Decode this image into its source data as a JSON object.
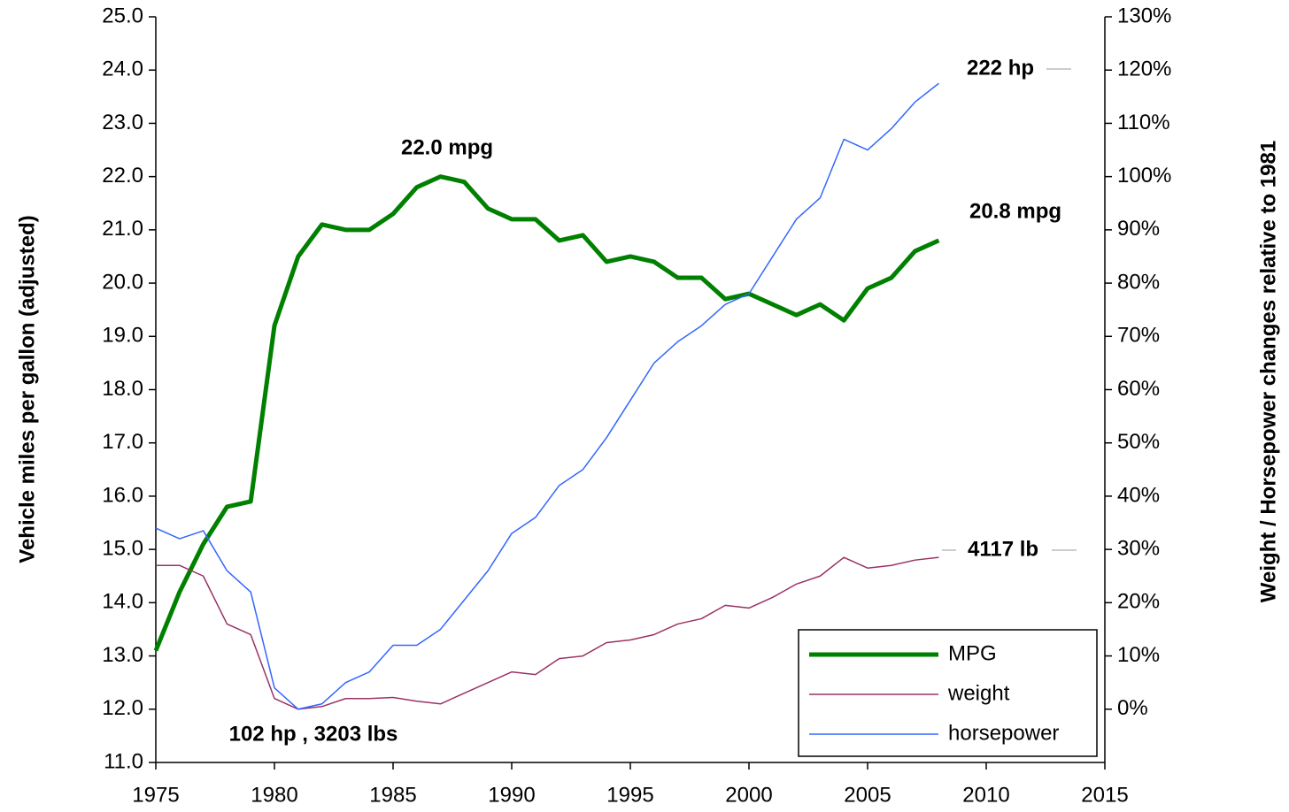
{
  "chart_data": {
    "type": "line",
    "y_label": "Vehicle miles per gallon (adjusted)",
    "y2_label": "Weight / Horsepower changes relative to 1981",
    "x": [
      1975,
      1976,
      1977,
      1978,
      1979,
      1980,
      1981,
      1982,
      1983,
      1984,
      1985,
      1986,
      1987,
      1988,
      1989,
      1990,
      1991,
      1992,
      1993,
      1994,
      1995,
      1996,
      1997,
      1998,
      1999,
      2000,
      2001,
      2002,
      2003,
      2004,
      2005,
      2006,
      2007,
      2008
    ],
    "series": [
      {
        "name": "MPG",
        "color": "#008000",
        "axis": "y",
        "values": [
          13.1,
          14.2,
          15.1,
          15.8,
          15.9,
          19.2,
          20.5,
          21.1,
          21.0,
          21.0,
          21.3,
          21.8,
          22.0,
          21.9,
          21.4,
          21.2,
          21.2,
          20.8,
          20.9,
          20.4,
          20.5,
          20.4,
          20.1,
          20.1,
          19.7,
          19.8,
          19.6,
          19.4,
          19.6,
          19.3,
          19.9,
          20.1,
          20.6,
          20.8
        ]
      },
      {
        "name": "weight",
        "color": "#993366",
        "axis": "y2",
        "values": [
          27,
          27,
          25,
          16,
          14,
          2,
          0,
          0.5,
          2,
          2,
          2.2,
          1.5,
          1,
          3,
          5,
          7,
          6.5,
          9.5,
          10,
          12.5,
          13,
          14,
          16,
          17,
          19.5,
          19,
          21,
          23.5,
          25,
          28.5,
          26.5,
          27,
          28,
          28.5
        ]
      },
      {
        "name": "horsepower",
        "color": "#3366ff",
        "axis": "y2",
        "values": [
          34,
          32,
          33.5,
          26,
          22,
          4,
          0,
          1,
          5,
          7,
          12,
          12,
          15,
          20.5,
          26,
          33,
          36,
          42,
          45,
          51,
          58,
          65,
          69,
          72,
          76,
          78,
          85,
          92,
          96,
          107,
          105,
          109,
          114,
          117.5
        ]
      }
    ],
    "annotations": [
      "222 hp",
      "20.8 mpg",
      "22.0 mpg",
      "4117 lb",
      "102 hp , 3203 lbs"
    ],
    "xlim": [
      1975,
      2015
    ],
    "xticks": [
      1975,
      1980,
      1985,
      1990,
      1995,
      2000,
      2005,
      2010,
      2015
    ],
    "ylim": [
      11,
      25
    ],
    "yticks": [
      {
        "value": 11,
        "label": "11.0"
      },
      {
        "value": 12,
        "label": "12.0"
      },
      {
        "value": 13,
        "label": "13.0"
      },
      {
        "value": 14,
        "label": "14.0"
      },
      {
        "value": 15,
        "label": "15.0"
      },
      {
        "value": 16,
        "label": "16.0"
      },
      {
        "value": 17,
        "label": "17.0"
      },
      {
        "value": 18,
        "label": "18.0"
      },
      {
        "value": 19,
        "label": "19.0"
      },
      {
        "value": 20,
        "label": "20.0"
      },
      {
        "value": 21,
        "label": "21.0"
      },
      {
        "value": 22,
        "label": "22.0"
      },
      {
        "value": 23,
        "label": "23.0"
      },
      {
        "value": 24,
        "label": "24.0"
      },
      {
        "value": 25,
        "label": "25.0"
      }
    ],
    "y2lim": [
      -10,
      130
    ],
    "y2ticks": [
      {
        "value": 0,
        "label": "0%"
      },
      {
        "value": 10,
        "label": "10%"
      },
      {
        "value": 20,
        "label": "20%"
      },
      {
        "value": 30,
        "label": "30%"
      },
      {
        "value": 40,
        "label": "40%"
      },
      {
        "value": 50,
        "label": "50%"
      },
      {
        "value": 60,
        "label": "60%"
      },
      {
        "value": 70,
        "label": "70%"
      },
      {
        "value": 80,
        "label": "80%"
      },
      {
        "value": 90,
        "label": "90%"
      },
      {
        "value": 100,
        "label": "100%"
      },
      {
        "value": 110,
        "label": "110%"
      },
      {
        "value": 120,
        "label": "120%"
      },
      {
        "value": 130,
        "label": "130%"
      }
    ],
    "legend": "lower right",
    "grid": false
  }
}
